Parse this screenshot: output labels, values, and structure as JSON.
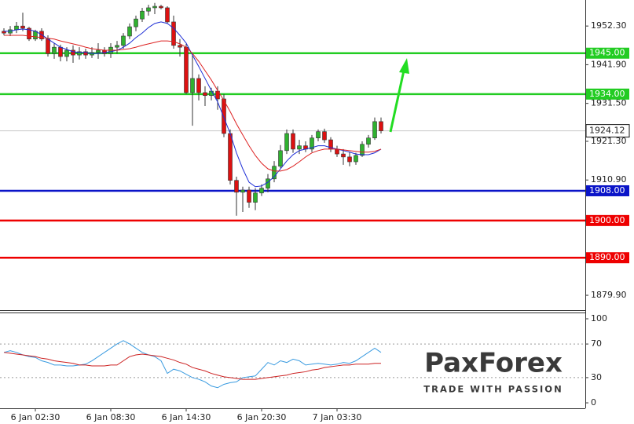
{
  "chart_data": [
    {
      "type": "candlestick",
      "open": [
        1950.9,
        1950.4,
        1951.3,
        1952.3,
        1951.7,
        1948.8,
        1950.9,
        1948.8,
        1944.9,
        1946.6,
        1944.1,
        1945.8,
        1944.5,
        1945.4,
        1944.5,
        1945.2,
        1945.8,
        1944.9,
        1946.6,
        1947.1,
        1949.6,
        1952.1,
        1954.2,
        1956.3,
        1957.2,
        1957.6,
        1957.2,
        1953.4,
        1947.1,
        1946.6,
        1934.4,
        1938.2,
        1934.4,
        1933.6,
        1934.8,
        1932.7,
        1923.4,
        1910.8,
        1907.6,
        1908.2,
        1904.9,
        1907.4,
        1908.7,
        1911.2,
        1914.6,
        1918.8,
        1923.4,
        1919.2,
        1920.1,
        1919.2,
        1922.2,
        1923.9,
        1921.7,
        1919.2,
        1917.9,
        1917.1,
        1915.8,
        1917.5,
        1920.5,
        1922.2,
        1926.6
      ],
      "high": [
        1951.7,
        1952.3,
        1953.4,
        1955.9,
        1952.1,
        1951.3,
        1951.7,
        1949.8,
        1947.7,
        1947.3,
        1946.6,
        1947.1,
        1946.6,
        1946.2,
        1946.6,
        1947.7,
        1946.6,
        1947.7,
        1948.3,
        1950.4,
        1953.0,
        1955.1,
        1957.2,
        1958.0,
        1958.5,
        1958.0,
        1957.6,
        1955.1,
        1948.8,
        1947.5,
        1944.5,
        1939.3,
        1936.1,
        1935.7,
        1936.1,
        1934.0,
        1924.5,
        1911.8,
        1909.1,
        1909.1,
        1908.7,
        1909.7,
        1912.5,
        1916.0,
        1920.3,
        1924.5,
        1924.5,
        1921.7,
        1921.3,
        1923.0,
        1924.5,
        1924.7,
        1922.4,
        1920.1,
        1919.2,
        1918.4,
        1918.2,
        1921.3,
        1923.0,
        1927.7,
        1927.7
      ],
      "low": [
        1949.8,
        1949.6,
        1950.4,
        1950.9,
        1948.3,
        1948.3,
        1948.3,
        1944.1,
        1943.5,
        1942.8,
        1942.8,
        1942.4,
        1943.3,
        1943.5,
        1943.7,
        1943.5,
        1944.1,
        1943.7,
        1944.9,
        1946.2,
        1948.8,
        1950.9,
        1953.4,
        1955.1,
        1955.5,
        1956.8,
        1953.0,
        1946.2,
        1944.1,
        1934.0,
        1925.5,
        1932.3,
        1930.8,
        1932.3,
        1929.8,
        1922.4,
        1909.7,
        1901.3,
        1902.3,
        1903.4,
        1902.8,
        1906.6,
        1907.6,
        1910.3,
        1914.1,
        1917.9,
        1918.2,
        1917.9,
        1918.4,
        1918.4,
        1921.3,
        1920.9,
        1918.4,
        1917.1,
        1915.0,
        1914.6,
        1915.0,
        1917.1,
        1919.6,
        1921.7,
        1923.4
      ],
      "close": [
        1950.4,
        1951.3,
        1952.3,
        1951.7,
        1948.8,
        1950.9,
        1948.8,
        1944.9,
        1946.6,
        1944.1,
        1945.8,
        1944.5,
        1945.4,
        1944.5,
        1945.2,
        1945.8,
        1944.9,
        1946.6,
        1947.1,
        1949.6,
        1952.1,
        1954.2,
        1956.3,
        1957.2,
        1957.6,
        1957.2,
        1953.4,
        1947.1,
        1946.6,
        1934.4,
        1938.2,
        1934.4,
        1933.6,
        1934.8,
        1932.7,
        1923.4,
        1910.8,
        1907.6,
        1908.2,
        1904.9,
        1907.4,
        1908.7,
        1911.2,
        1914.6,
        1918.8,
        1923.4,
        1919.2,
        1920.1,
        1919.2,
        1922.2,
        1923.9,
        1921.7,
        1919.2,
        1917.9,
        1917.1,
        1915.8,
        1917.5,
        1920.5,
        1922.2,
        1926.6,
        1924.12
      ],
      "up_color": "#2fb12f",
      "down_color": "#dd1111",
      "lines": [
        {
          "color": "#1f2fd6",
          "values": [
            1950.9,
            1950.9,
            1951.3,
            1951.5,
            1951.3,
            1950.9,
            1950.0,
            1948.8,
            1947.7,
            1946.6,
            1946.0,
            1945.4,
            1945.2,
            1945.2,
            1944.9,
            1944.9,
            1945.2,
            1945.4,
            1945.8,
            1946.6,
            1947.7,
            1949.2,
            1950.4,
            1951.9,
            1953.0,
            1953.4,
            1953.0,
            1951.7,
            1949.8,
            1947.7,
            1944.5,
            1941.4,
            1938.2,
            1935.0,
            1931.9,
            1927.7,
            1923.4,
            1918.2,
            1913.9,
            1910.3,
            1909.1,
            1909.3,
            1910.3,
            1911.8,
            1913.9,
            1916.0,
            1917.7,
            1918.8,
            1919.2,
            1919.6,
            1920.1,
            1920.1,
            1919.6,
            1919.2,
            1918.8,
            1918.4,
            1917.9,
            1917.7,
            1917.7,
            1918.2,
            1919.2
          ]
        },
        {
          "color": "#dd2222",
          "values": [
            1949.8,
            1949.8,
            1949.8,
            1949.8,
            1949.6,
            1949.4,
            1949.2,
            1949.0,
            1948.8,
            1948.3,
            1947.9,
            1947.5,
            1947.1,
            1946.6,
            1946.2,
            1946.0,
            1945.8,
            1945.8,
            1945.8,
            1946.0,
            1946.2,
            1946.6,
            1947.1,
            1947.5,
            1947.9,
            1948.3,
            1948.3,
            1948.1,
            1947.5,
            1946.6,
            1944.9,
            1942.8,
            1940.3,
            1937.8,
            1935.0,
            1932.3,
            1929.3,
            1926.0,
            1923.0,
            1920.1,
            1917.5,
            1915.4,
            1913.9,
            1913.3,
            1913.3,
            1913.7,
            1914.6,
            1915.8,
            1917.1,
            1918.2,
            1918.8,
            1919.2,
            1919.2,
            1919.2,
            1919.0,
            1918.8,
            1918.6,
            1918.4,
            1918.4,
            1918.6,
            1919.2
          ]
        }
      ],
      "ylim": [
        1875.9,
        1959.3
      ],
      "yticks": [
        {
          "value": 1952.3,
          "label": "1952.30"
        },
        {
          "value": 1941.9,
          "label": "1941.90"
        },
        {
          "value": 1931.5,
          "label": "1931.50"
        },
        {
          "value": 1921.3,
          "label": "1921.30"
        },
        {
          "value": 1910.9,
          "label": "1910.90"
        },
        {
          "value": 1879.9,
          "label": "1879.90"
        }
      ],
      "levels": [
        {
          "value": 1945,
          "label": "1945.00",
          "color": "#22cc22"
        },
        {
          "value": 1934,
          "label": "1934.00",
          "color": "#22cc22"
        },
        {
          "value": 1908,
          "label": "1908.00",
          "color": "#0a14c8"
        },
        {
          "value": 1900,
          "label": "1900.00",
          "color": "#ee0000"
        },
        {
          "value": 1890,
          "label": "1890.00",
          "color": "#ee0000"
        }
      ],
      "last_price": 1924.12
    },
    {
      "type": "line",
      "categories": [
        null,
        null,
        null,
        null,
        null,
        "6 Jan 02:30",
        null,
        null,
        null,
        null,
        null,
        null,
        null,
        null,
        null,
        null,
        null,
        "6 Jan 08:30",
        null,
        null,
        null,
        null,
        null,
        null,
        null,
        null,
        null,
        null,
        null,
        "6 Jan 14:30",
        null,
        null,
        null,
        null,
        null,
        null,
        null,
        null,
        null,
        null,
        null,
        "6 Jan 20:30",
        null,
        null,
        null,
        null,
        null,
        null,
        null,
        null,
        null,
        null,
        null,
        "7 Jan 03:30",
        null,
        null,
        null,
        null,
        null,
        null,
        null
      ],
      "series": [
        {
          "color": "#3a9be0",
          "values": [
            60,
            62,
            60,
            57,
            55,
            54,
            50,
            48,
            45,
            45,
            44,
            44,
            45,
            46,
            50,
            55,
            60,
            65,
            70,
            74,
            70,
            65,
            60,
            57,
            55,
            50,
            35,
            40,
            38,
            34,
            30,
            28,
            25,
            20,
            18,
            22,
            24,
            25,
            30,
            31,
            32,
            40,
            48,
            45,
            50,
            48,
            52,
            50,
            45,
            46,
            47,
            46,
            45,
            46,
            48,
            47,
            50,
            55,
            60,
            65,
            60
          ]
        },
        {
          "color": "#cc2222",
          "values": [
            60,
            59,
            58,
            57,
            56,
            55,
            53,
            52,
            50,
            49,
            48,
            47,
            45,
            45,
            44,
            44,
            44,
            45,
            45,
            50,
            55,
            57,
            58,
            57,
            56,
            55,
            53,
            51,
            48,
            46,
            42,
            40,
            38,
            35,
            33,
            31,
            30,
            29,
            28,
            28,
            28,
            29,
            30,
            31,
            32,
            33,
            35,
            36,
            37,
            39,
            40,
            42,
            43,
            44,
            45,
            45,
            46,
            46,
            46,
            47,
            47
          ]
        }
      ],
      "ylim": [
        -6.5,
        108.4
      ],
      "yticks": [
        100,
        70,
        30,
        0
      ],
      "guide_lines": [
        70,
        30
      ]
    }
  ],
  "logo": {
    "name": "PaxForex",
    "tagline": "TRADE WITH PASSION"
  }
}
